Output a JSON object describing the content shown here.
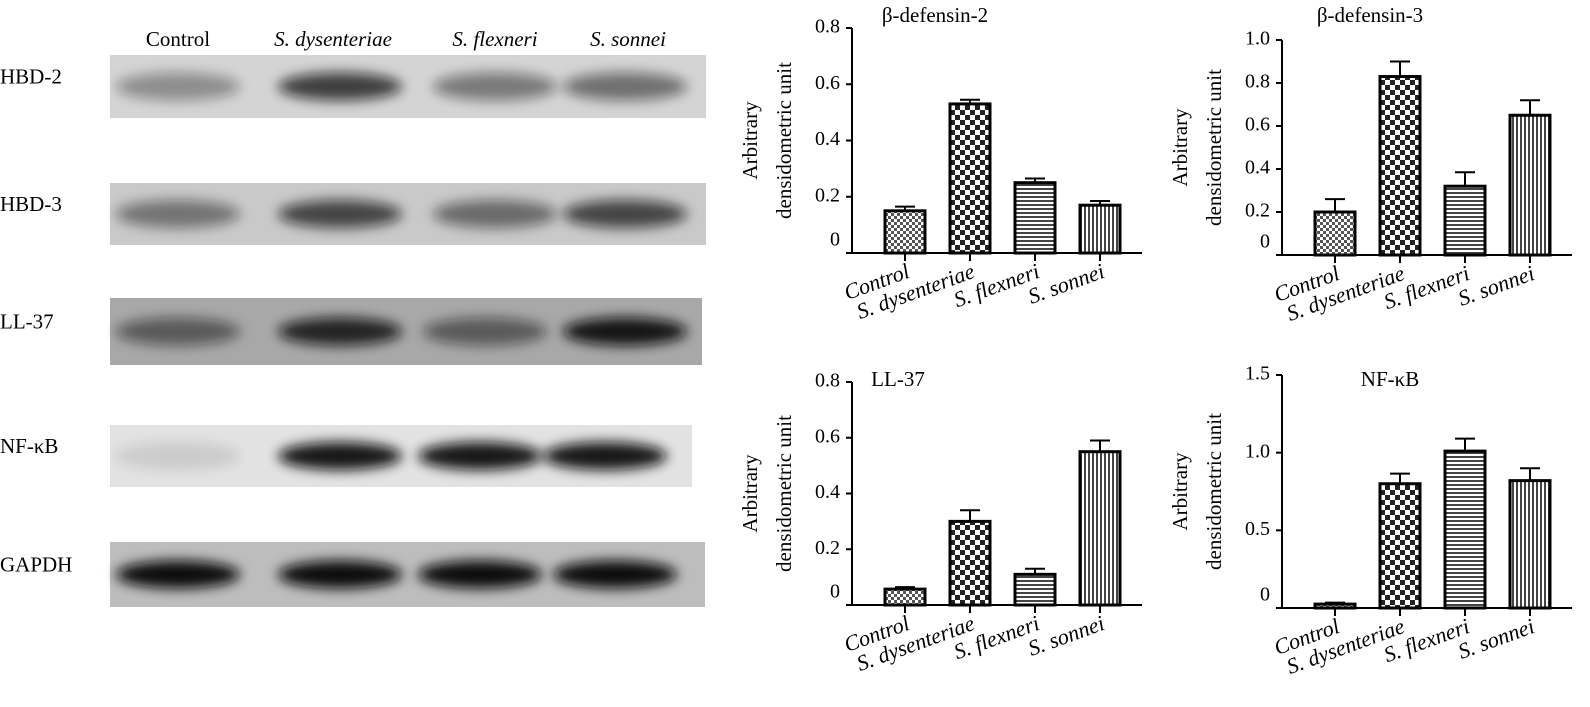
{
  "blot": {
    "lanes": [
      "Control",
      "S. dysenteriae",
      "S. flexneri",
      "S. sonnei"
    ],
    "rows": [
      "HBD-2",
      "HBD-3",
      "LL-37",
      "NF-κB",
      "GAPDH"
    ]
  },
  "chart_data": [
    {
      "type": "bar",
      "title": "β-defensin-2",
      "ylabel": [
        "Arbitrary",
        "densidometric unit"
      ],
      "categories": [
        "Control",
        "S. dysenteriae",
        "S. flexneri",
        "S. sonnei"
      ],
      "values": [
        0.15,
        0.53,
        0.25,
        0.17
      ],
      "errors": [
        0.015,
        0.015,
        0.015,
        0.015
      ],
      "ylim": [
        0,
        0.8
      ],
      "yticks": [
        0,
        0.2,
        0.4,
        0.6,
        0.8
      ]
    },
    {
      "type": "bar",
      "title": "β-defensin-3",
      "ylabel": [
        "Arbitrary",
        "densidometric unit"
      ],
      "categories": [
        "Control",
        "S. dysenteriae",
        "S. flexneri",
        "S. sonnei"
      ],
      "values": [
        0.2,
        0.83,
        0.32,
        0.65
      ],
      "errors": [
        0.06,
        0.07,
        0.065,
        0.07
      ],
      "ylim": [
        0,
        1
      ],
      "yticks": [
        0,
        0.2,
        0.4,
        0.6,
        0.8,
        {
          "value": 1,
          "label": "1.0"
        }
      ]
    },
    {
      "type": "bar",
      "title": "LL-37",
      "ylabel": [
        "Arbitrary",
        "densidometric unit"
      ],
      "categories": [
        "Control",
        "S. dysenteriae",
        "S. flexneri",
        "S. sonnei"
      ],
      "values": [
        0.057,
        0.3,
        0.11,
        0.55
      ],
      "errors": [
        0.007,
        0.04,
        0.02,
        0.04
      ],
      "ylim": [
        0,
        0.8
      ],
      "yticks": [
        0,
        0.2,
        0.4,
        0.6,
        0.8
      ]
    },
    {
      "type": "bar",
      "title": "NF-κB",
      "ylabel": [
        "Arbitrary",
        "densidometric unit"
      ],
      "categories": [
        "Control",
        "S. dysenteriae",
        "S. flexneri",
        "S. sonnei"
      ],
      "values": [
        0.025,
        0.8,
        1.01,
        0.82
      ],
      "errors": [
        0.01,
        0.065,
        0.08,
        0.08
      ],
      "ylim": [
        0,
        1.5
      ],
      "yticks": [
        0,
        0.5,
        {
          "value": 1,
          "label": "1.0"
        },
        1.5
      ]
    }
  ]
}
